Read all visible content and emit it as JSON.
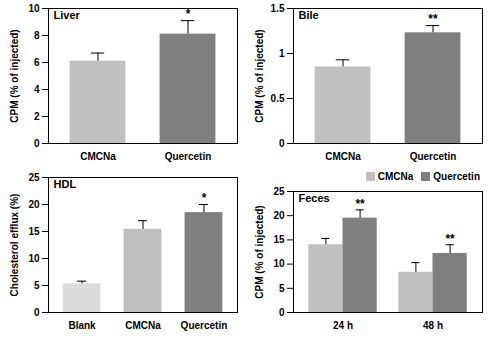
{
  "chart_data": [
    {
      "type": "bar",
      "title": "Liver",
      "ylabel": "CPM (% of injected)",
      "categories": [
        "CMCNa",
        "Quercetin"
      ],
      "values": [
        6.1,
        8.1
      ],
      "errors": [
        0.6,
        1.0
      ],
      "significance": [
        null,
        "*"
      ],
      "colors": [
        "#c0c0c0",
        "#7f7f7f"
      ],
      "ylim": [
        0,
        10
      ],
      "yticks": [
        0,
        2,
        4,
        6,
        8,
        10
      ]
    },
    {
      "type": "bar",
      "title": "Bile",
      "ylabel": "CPM (% of injected)",
      "categories": [
        "CMCNa",
        "Quercetin"
      ],
      "values": [
        0.85,
        1.23
      ],
      "errors": [
        0.08,
        0.08
      ],
      "significance": [
        null,
        "**"
      ],
      "colors": [
        "#c0c0c0",
        "#7f7f7f"
      ],
      "ylim": [
        0,
        1.5
      ],
      "yticks": [
        0,
        0.5,
        1,
        1.5
      ]
    },
    {
      "type": "bar",
      "title": "HDL",
      "ylabel": "Cholesterol efflux (%)",
      "categories": [
        "Blank",
        "CMCNa",
        "Quercetin"
      ],
      "values": [
        5.3,
        15.4,
        18.5
      ],
      "errors": [
        0.5,
        1.6,
        1.5
      ],
      "significance": [
        null,
        null,
        "*"
      ],
      "colors": [
        "#dcdcdc",
        "#c0c0c0",
        "#7f7f7f"
      ],
      "ylim": [
        0,
        25
      ],
      "yticks": [
        0,
        5,
        10,
        15,
        20,
        25
      ]
    },
    {
      "type": "bar",
      "title": "Feces",
      "ylabel": "CPM (% of injected)",
      "categories": [
        "24 h",
        "48 h"
      ],
      "series": [
        {
          "name": "CMCNa",
          "color": "#c0c0c0",
          "values": [
            14.0,
            8.3
          ],
          "errors": [
            1.3,
            2.0
          ]
        },
        {
          "name": "Quercetin",
          "color": "#7f7f7f",
          "values": [
            19.5,
            12.2
          ],
          "errors": [
            1.7,
            1.8
          ],
          "significance": [
            "**",
            "**"
          ]
        }
      ],
      "legend": "top-right",
      "ylim": [
        0,
        25
      ],
      "yticks": [
        0,
        5,
        10,
        15,
        20,
        25
      ]
    }
  ]
}
